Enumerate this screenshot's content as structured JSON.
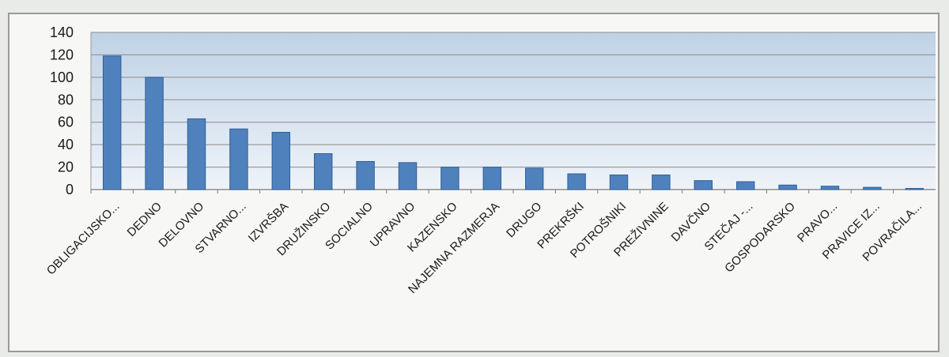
{
  "chart_data": {
    "type": "bar",
    "title": "",
    "xlabel": "",
    "ylabel": "",
    "ylim": [
      0,
      140
    ],
    "yticks": [
      0,
      20,
      40,
      60,
      80,
      100,
      120,
      140
    ],
    "grid": true,
    "legend": "none",
    "colors": {
      "bar": "#4f81bd",
      "bar_stroke": "#2f5f97",
      "plot_bg_top": "#bfd2e6",
      "plot_bg_bottom": "#eef3f9",
      "grid": "#8b8b8b"
    },
    "categories": [
      "OBLIGACIJSKO...",
      "DEDNO",
      "DELOVNO",
      "STVARNO...",
      "IZVRŠBA",
      "DRUŽINSKO",
      "SOCIALNO",
      "UPRAVNO",
      "KAZENSKO",
      "NAJEMNA RAZMERJA",
      "DRUGO",
      "PREKRŠKI",
      "POTROŠNIKI",
      "PREŽIVNINE",
      "DAVČNO",
      "STEČAJ -...",
      "GOSPODARSKO",
      "PRAVO...",
      "PRAVICE IZ...",
      "POVRAČILA..."
    ],
    "values": [
      119,
      100,
      63,
      54,
      51,
      32,
      25,
      24,
      20,
      20,
      19,
      14,
      13,
      13,
      8,
      7,
      4,
      3,
      2,
      1
    ]
  }
}
